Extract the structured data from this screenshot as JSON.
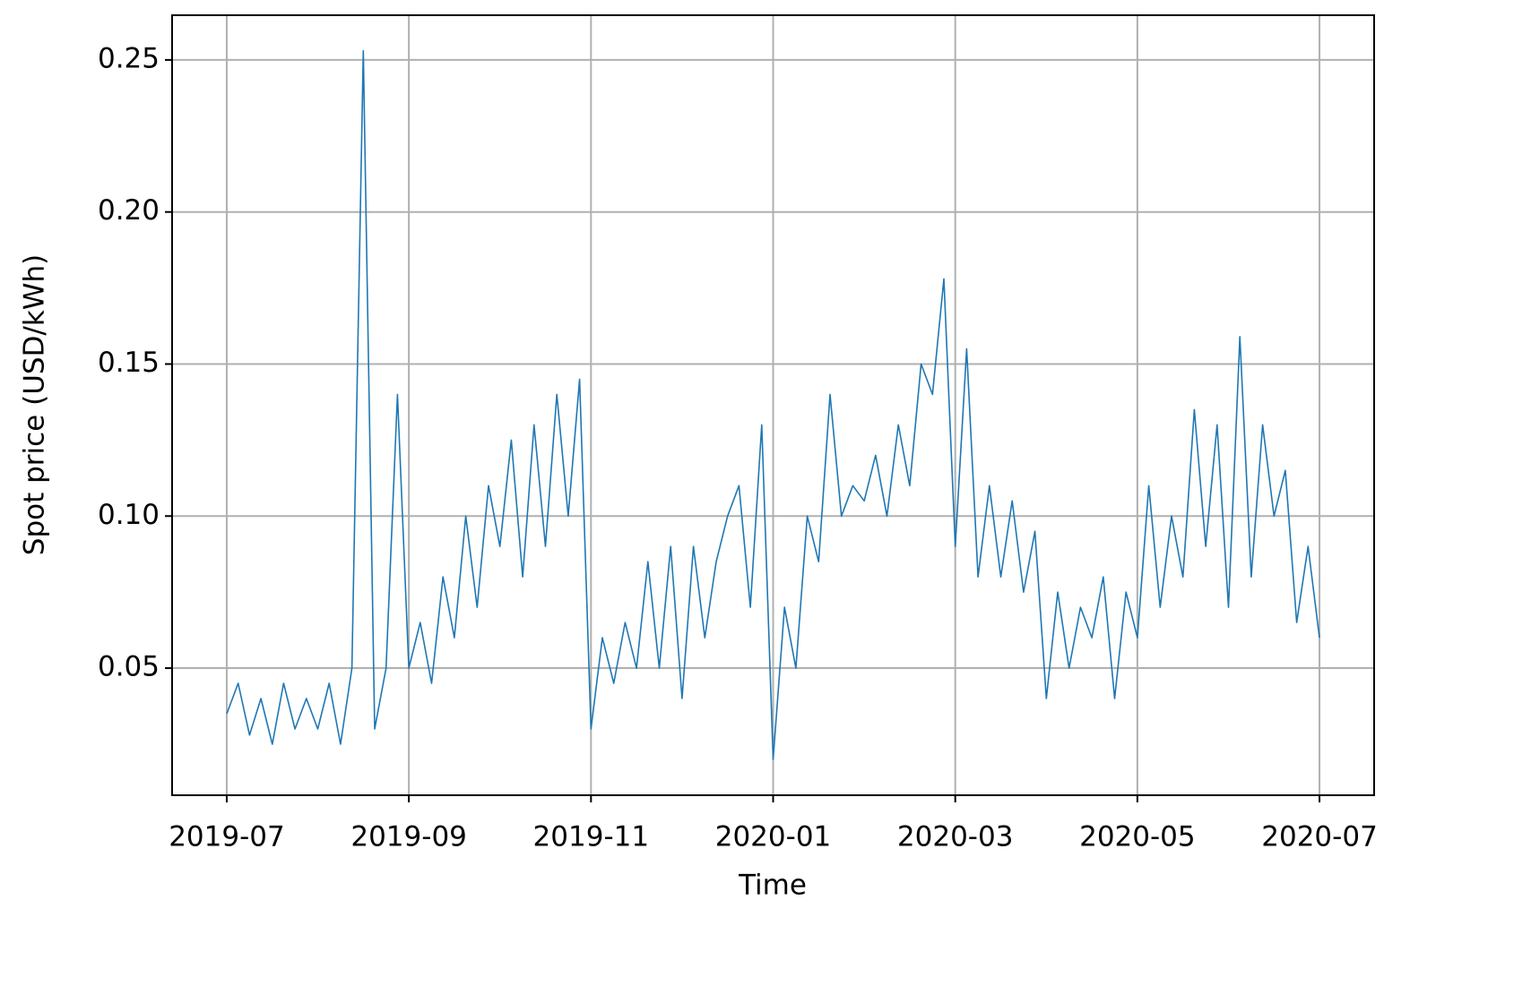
{
  "chart_data": {
    "type": "line",
    "xlabel": "Time",
    "ylabel": "Spot price (USD/kWh)",
    "x": [
      "2019-07",
      "2019-07",
      "2019-07",
      "2019-07",
      "2019-07",
      "2019-07",
      "2019-07",
      "2019-07",
      "2019-08",
      "2019-08",
      "2019-08",
      "2019-08",
      "2019-08",
      "2019-08",
      "2019-08",
      "2019-08",
      "2019-09",
      "2019-09",
      "2019-09",
      "2019-09",
      "2019-09",
      "2019-09",
      "2019-09",
      "2019-09",
      "2019-10",
      "2019-10",
      "2019-10",
      "2019-10",
      "2019-10",
      "2019-10",
      "2019-10",
      "2019-10",
      "2019-11",
      "2019-11",
      "2019-11",
      "2019-11",
      "2019-11",
      "2019-11",
      "2019-11",
      "2019-11",
      "2019-12",
      "2019-12",
      "2019-12",
      "2019-12",
      "2019-12",
      "2019-12",
      "2019-12",
      "2019-12",
      "2020-01",
      "2020-01",
      "2020-01",
      "2020-01",
      "2020-01",
      "2020-01",
      "2020-01",
      "2020-01",
      "2020-02",
      "2020-02",
      "2020-02",
      "2020-02",
      "2020-02",
      "2020-02",
      "2020-02",
      "2020-02",
      "2020-03",
      "2020-03",
      "2020-03",
      "2020-03",
      "2020-03",
      "2020-03",
      "2020-03",
      "2020-03",
      "2020-04",
      "2020-04",
      "2020-04",
      "2020-04",
      "2020-04",
      "2020-04",
      "2020-04",
      "2020-04",
      "2020-05",
      "2020-05",
      "2020-05",
      "2020-05",
      "2020-05",
      "2020-05",
      "2020-05",
      "2020-05",
      "2020-06",
      "2020-06",
      "2020-06",
      "2020-06",
      "2020-06",
      "2020-06",
      "2020-06",
      "2020-06",
      "2020-07"
    ],
    "values": [
      0.035,
      0.045,
      0.028,
      0.04,
      0.025,
      0.045,
      0.03,
      0.04,
      0.03,
      0.045,
      0.025,
      0.05,
      0.253,
      0.03,
      0.05,
      0.14,
      0.05,
      0.065,
      0.045,
      0.08,
      0.06,
      0.1,
      0.07,
      0.11,
      0.09,
      0.125,
      0.08,
      0.13,
      0.09,
      0.14,
      0.1,
      0.145,
      0.03,
      0.06,
      0.045,
      0.065,
      0.05,
      0.085,
      0.05,
      0.09,
      0.04,
      0.09,
      0.06,
      0.085,
      0.1,
      0.11,
      0.07,
      0.13,
      0.02,
      0.07,
      0.05,
      0.1,
      0.085,
      0.14,
      0.1,
      0.11,
      0.105,
      0.12,
      0.1,
      0.13,
      0.11,
      0.15,
      0.14,
      0.178,
      0.09,
      0.155,
      0.08,
      0.11,
      0.08,
      0.105,
      0.075,
      0.095,
      0.04,
      0.075,
      0.05,
      0.07,
      0.06,
      0.08,
      0.04,
      0.075,
      0.06,
      0.11,
      0.07,
      0.1,
      0.08,
      0.135,
      0.09,
      0.13,
      0.07,
      0.159,
      0.08,
      0.13,
      0.1,
      0.115,
      0.065,
      0.09,
      0.06
    ],
    "color": "#1f77b4",
    "xticks": [
      "2019-07",
      "2019-09",
      "2019-11",
      "2020-01",
      "2020-03",
      "2020-05",
      "2020-07"
    ],
    "ylim": [
      0.0082,
      0.2647
    ],
    "yticks": [
      0.05,
      {
        "value": 0.1,
        "label": "0.10"
      },
      0.15,
      {
        "value": 0.2,
        "label": "0.20"
      },
      0.25
    ],
    "grid": true
  }
}
